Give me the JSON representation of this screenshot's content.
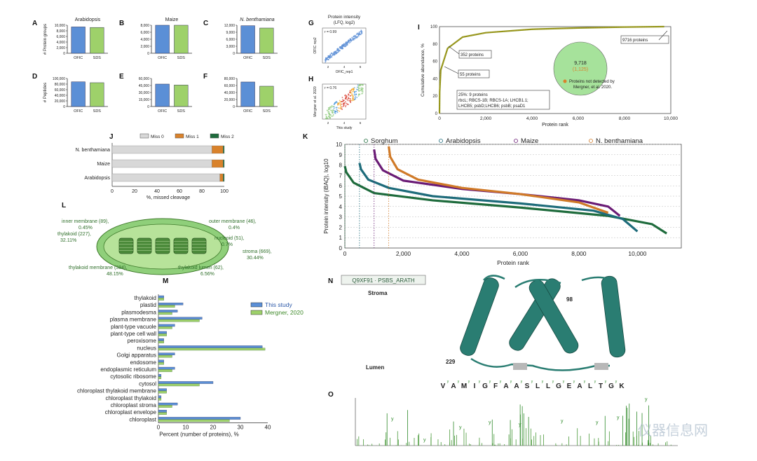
{
  "colors": {
    "blue": "#5b8fd6",
    "green_light": "#9ed16a",
    "orange": "#d9822b",
    "dark_green": "#1e6b3c",
    "purple": "#6a1b75",
    "teal": "#1d6b7a",
    "brown_orange": "#d07a28",
    "protein_teal": "#2a7d72"
  },
  "panel_letters": {
    "A": "A",
    "B": "B",
    "C": "C",
    "D": "D",
    "E": "E",
    "F": "F",
    "G": "G",
    "H": "H",
    "I": "I",
    "J": "J",
    "K": "K",
    "L": "L",
    "M": "M",
    "N": "N",
    "O": "O"
  },
  "chart_data": [
    {
      "id": "A",
      "type": "bar",
      "title": "Arabidopsis",
      "ylabel": "# Protein groups",
      "categories": [
        "OFIC",
        "SDS"
      ],
      "values": [
        9400,
        9200
      ],
      "ylim": [
        0,
        10000
      ],
      "yticks": [
        "0",
        "2,000",
        "4,000",
        "6,000",
        "8,000",
        "10,000"
      ]
    },
    {
      "id": "B",
      "type": "bar",
      "title": "Maize",
      "categories": [
        "OFIC",
        "SDS"
      ],
      "values": [
        8400,
        8300
      ],
      "ylim": [
        0,
        8000
      ],
      "yticks": [
        "0",
        "2,000",
        "4,000",
        "6,000",
        "8,000"
      ]
    },
    {
      "id": "C",
      "type": "bar",
      "title": "N. benthamiana",
      "categories": [
        "OFIC",
        "SDS"
      ],
      "values": [
        11800,
        10800
      ],
      "ylim": [
        0,
        12000
      ],
      "yticks": [
        "0",
        "3,000",
        "6,000",
        "9,000",
        "12,000"
      ]
    },
    {
      "id": "D",
      "type": "bar",
      "ylabel": "# Peptides",
      "categories": [
        "OFIC",
        "SDS"
      ],
      "values": [
        88000,
        85000
      ],
      "ylim": [
        0,
        100000
      ],
      "yticks": [
        "0",
        "20,000",
        "40,000",
        "60,000",
        "80,000",
        "100,000"
      ]
    },
    {
      "id": "E",
      "type": "bar",
      "categories": [
        "OFIC",
        "SDS"
      ],
      "values": [
        48000,
        46000
      ],
      "ylim": [
        0,
        60000
      ],
      "yticks": [
        "0",
        "15,000",
        "30,000",
        "45,000",
        "60,000"
      ]
    },
    {
      "id": "F",
      "type": "bar",
      "categories": [
        "OFIC",
        "SDS"
      ],
      "values": [
        70000,
        58000
      ],
      "ylim": [
        0,
        80000
      ],
      "yticks": [
        "0",
        "20,000",
        "40,000",
        "60,000",
        "80,000"
      ]
    },
    {
      "id": "G",
      "type": "scatter",
      "title": "Protein intensity",
      "subtitle": "(LFQ, log2)",
      "annotation": "r = 0.99",
      "ylabel": "OFIC rep2",
      "xlabel": "OFIC_rep1"
    },
    {
      "id": "H",
      "type": "scatter",
      "annotation": "r = 0.76",
      "ylabel": "Mergner et al. 2020",
      "xlabel": "This study"
    },
    {
      "id": "I",
      "type": "line",
      "xlabel": "Protein rank",
      "ylabel": "Cumulative abundance, %",
      "xlim": [
        0,
        10000
      ],
      "ylim": [
        0,
        100
      ],
      "xticks": [
        "0",
        "2,000",
        "4,000",
        "6,000",
        "8,000",
        "10,000"
      ],
      "yticks": [
        "0",
        "20",
        "40",
        "60",
        "80",
        "100"
      ],
      "x": [
        0,
        9,
        55,
        352,
        1000,
        2000,
        4000,
        6000,
        8000,
        9716
      ],
      "y": [
        0,
        25,
        50,
        75,
        88,
        93,
        97,
        98.5,
        99.5,
        100
      ],
      "annotations": [
        "9716 proteins",
        "352 proteins",
        "55 proteins",
        "25%: 9 proteins",
        "rbcL; RBCS-1B; RBCS-1A; LHCB1.1;",
        "LHCB5; psbD;LHCB6; psbB; psaD1"
      ],
      "venn": {
        "total": "9,718",
        "undetected": "(1,125)",
        "legend": "Proteins not detected by",
        "legend2": "Mergner, et al. 2020."
      }
    },
    {
      "id": "J",
      "type": "bar",
      "stacked": true,
      "xlabel": "%, missed cleavage",
      "legend": [
        "Miss 0",
        "Miss 1",
        "Miss 2"
      ],
      "categories": [
        "N. benthamiana",
        "Maize",
        "Arabidopsis"
      ],
      "series": [
        {
          "name": "Miss 0",
          "values": [
            89,
            89,
            96
          ]
        },
        {
          "name": "Miss 1",
          "values": [
            10,
            10,
            3
          ]
        },
        {
          "name": "Miss 2",
          "values": [
            1,
            1,
            1
          ]
        }
      ],
      "xticks": [
        "0",
        "20",
        "40",
        "60",
        "80",
        "100"
      ]
    },
    {
      "id": "K",
      "type": "line",
      "xlabel": "Protein rank",
      "ylabel": "Protein intensity (iBAQ), log10",
      "xlim": [
        0,
        11500
      ],
      "ylim": [
        0,
        10
      ],
      "xticks": [
        "0",
        "2,000",
        "4,000",
        "6,000",
        "8,000",
        "10,000"
      ],
      "yticks": [
        "0",
        "1",
        "2",
        "3",
        "4",
        "5",
        "6",
        "7",
        "8",
        "9",
        "10"
      ],
      "legend": [
        "Sorghum",
        "Arabidopsis",
        "Maize",
        "N. benthamiana"
      ],
      "series": [
        {
          "name": "Sorghum",
          "x": [
            0,
            50,
            300,
            1000,
            3000,
            6000,
            9000,
            10500,
            11000
          ],
          "y": [
            7.9,
            7.3,
            6.3,
            5.3,
            4.6,
            3.9,
            3.1,
            2.3,
            1.4
          ]
        },
        {
          "name": "Arabidopsis",
          "x": [
            500,
            550,
            800,
            1500,
            3000,
            6000,
            8500,
            9500,
            10000
          ],
          "y": [
            8.2,
            7.6,
            6.6,
            5.8,
            5.0,
            4.3,
            3.6,
            2.8,
            1.6
          ]
        },
        {
          "name": "Maize",
          "x": [
            1000,
            1050,
            1300,
            2000,
            4000,
            6000,
            8000,
            9000,
            9400
          ],
          "y": [
            9.5,
            8.6,
            7.5,
            6.5,
            5.7,
            5.2,
            4.6,
            4.0,
            3.1
          ]
        },
        {
          "name": "N. benthamiana",
          "x": [
            1500,
            1550,
            1800,
            2500,
            4000,
            6000,
            8000,
            9000
          ],
          "y": [
            9.8,
            8.8,
            7.6,
            6.6,
            5.8,
            5.2,
            4.4,
            3.4
          ]
        }
      ]
    },
    {
      "id": "L",
      "type": "diagram",
      "labels": [
        "inner membrane (89),",
        "0.45%",
        "outer membrane (46),",
        "0.4%",
        "thylakoid (227),",
        "32.11%",
        "nucleoid (51),",
        "0.7%",
        "stroma (669),",
        "30.44%",
        "thylakoid membrane (384),",
        "48.15%",
        "thylakoid lumen (62),",
        "6.56%"
      ]
    },
    {
      "id": "M",
      "type": "bar",
      "orientation": "horizontal",
      "xlabel": "Percent (number of proteins), %",
      "xlim": [
        0,
        40
      ],
      "xticks": [
        "0",
        "10",
        "20",
        "30",
        "40"
      ],
      "categories": [
        "thylakoid",
        "plastid",
        "plasmodesma",
        "plasma membrane",
        "plant-type vacuole",
        "plant-type cell wall",
        "peroxisome",
        "nucleus",
        "Golgi apparatus",
        "endosome",
        "endoplasmic reticulum",
        "cytosolic ribosome",
        "cytosol",
        "chloroplast thylakoid membrane",
        "chloroplast thylakoid",
        "chloroplast stroma",
        "chloroplast envelope",
        "chloroplast"
      ],
      "series": [
        {
          "name": "This study",
          "values": [
            2,
            9,
            7,
            16,
            6,
            3,
            2,
            38,
            6,
            2,
            6,
            1,
            20,
            3,
            1,
            7,
            3,
            30
          ]
        },
        {
          "name": "Mergner, 2020",
          "values": [
            2,
            6,
            5,
            15,
            5,
            3,
            2,
            39,
            5,
            2,
            5,
            1,
            15,
            3,
            1,
            5,
            3,
            26
          ]
        }
      ]
    },
    {
      "id": "N",
      "type": "diagram",
      "labels": [
        "Q9XF91 · PSBS_ARATH",
        "Stroma",
        "Lumen",
        "98",
        "229"
      ]
    },
    {
      "id": "O",
      "type": "bar",
      "sequence": [
        "V",
        "A",
        "M",
        "I",
        "G",
        "F",
        "A",
        "A",
        "S",
        "L",
        "L",
        "G",
        "E",
        "A",
        "L",
        "T",
        "G",
        "K"
      ],
      "labels": [
        "y",
        "b"
      ]
    }
  ],
  "watermark": "仪器信息网"
}
